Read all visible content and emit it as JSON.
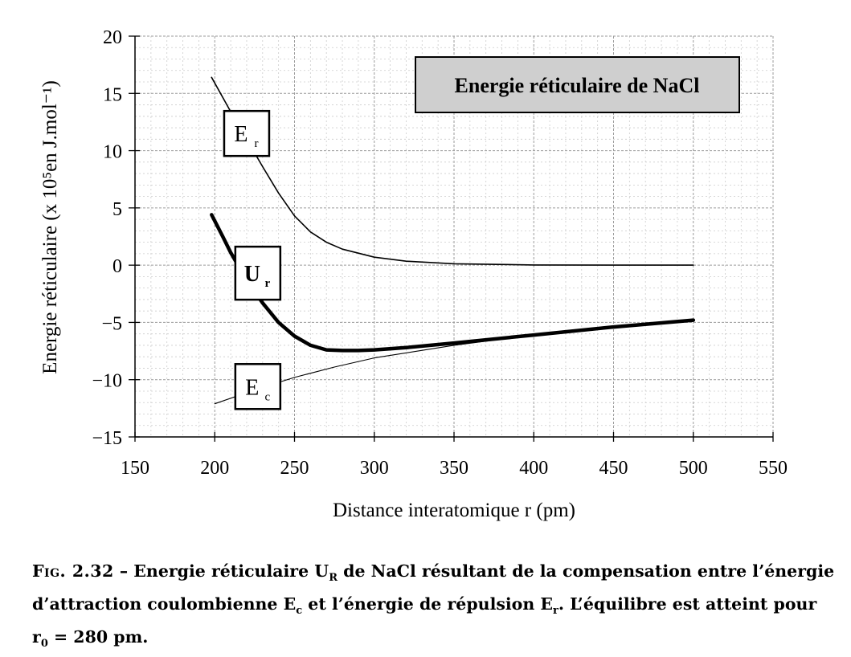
{
  "chart_data": {
    "type": "line",
    "title": "Energie réticulaire de NaCl",
    "xlabel": "Distance interatomique r (pm)",
    "ylabel": "Energie réticulaire (x 10⁵en J.mol⁻¹)",
    "xlim": [
      150,
      550
    ],
    "ylim": [
      -15,
      20
    ],
    "xticks": [
      150,
      200,
      250,
      300,
      350,
      400,
      450,
      500,
      550
    ],
    "yticks": [
      -15,
      -10,
      -5,
      0,
      5,
      10,
      15,
      20
    ],
    "grid": true,
    "series": [
      {
        "name": "Er",
        "label_main": "E",
        "label_sub": "r",
        "x": [
          198,
          210,
          220,
          230,
          240,
          250,
          260,
          270,
          280,
          300,
          320,
          350,
          400,
          450,
          500
        ],
        "y": [
          16.4,
          13.4,
          11.0,
          8.6,
          6.3,
          4.3,
          2.9,
          2.0,
          1.4,
          0.7,
          0.35,
          0.12,
          0.02,
          0.0,
          0.0
        ]
      },
      {
        "name": "Ur",
        "label_main": "U",
        "label_sub": "r",
        "x": [
          198,
          205,
          210,
          220,
          230,
          240,
          250,
          260,
          270,
          280,
          290,
          300,
          320,
          350,
          400,
          450,
          500
        ],
        "y": [
          4.4,
          2.5,
          1.1,
          -1.3,
          -3.3,
          -5.0,
          -6.2,
          -7.0,
          -7.4,
          -7.45,
          -7.45,
          -7.4,
          -7.2,
          -6.8,
          -6.1,
          -5.4,
          -4.8
        ]
      },
      {
        "name": "Ec",
        "label_main": "E",
        "label_sub": "c",
        "x": [
          200,
          225,
          250,
          275,
          300,
          350,
          400,
          450,
          500
        ],
        "y": [
          -12.1,
          -10.9,
          -9.8,
          -8.9,
          -8.1,
          -7.0,
          -6.1,
          -5.4,
          -4.8
        ]
      }
    ]
  },
  "caption": {
    "fig_label": "Fig. 2.32",
    "dash": " – Energie réticulaire ",
    "ur_main": "U",
    "ur_sub": "R",
    "part2": " de NaCl résultant de la compensation entre l’énergie d’attraction coulombienne ",
    "ec_main": "E",
    "ec_sub": "c",
    "part3": " et l’énergie de répulsion ",
    "er_main": "E",
    "er_sub": "r",
    "part4": ". L’équilibre est atteint pour r",
    "r0_sub": "0",
    "part5": " = 280 pm."
  }
}
